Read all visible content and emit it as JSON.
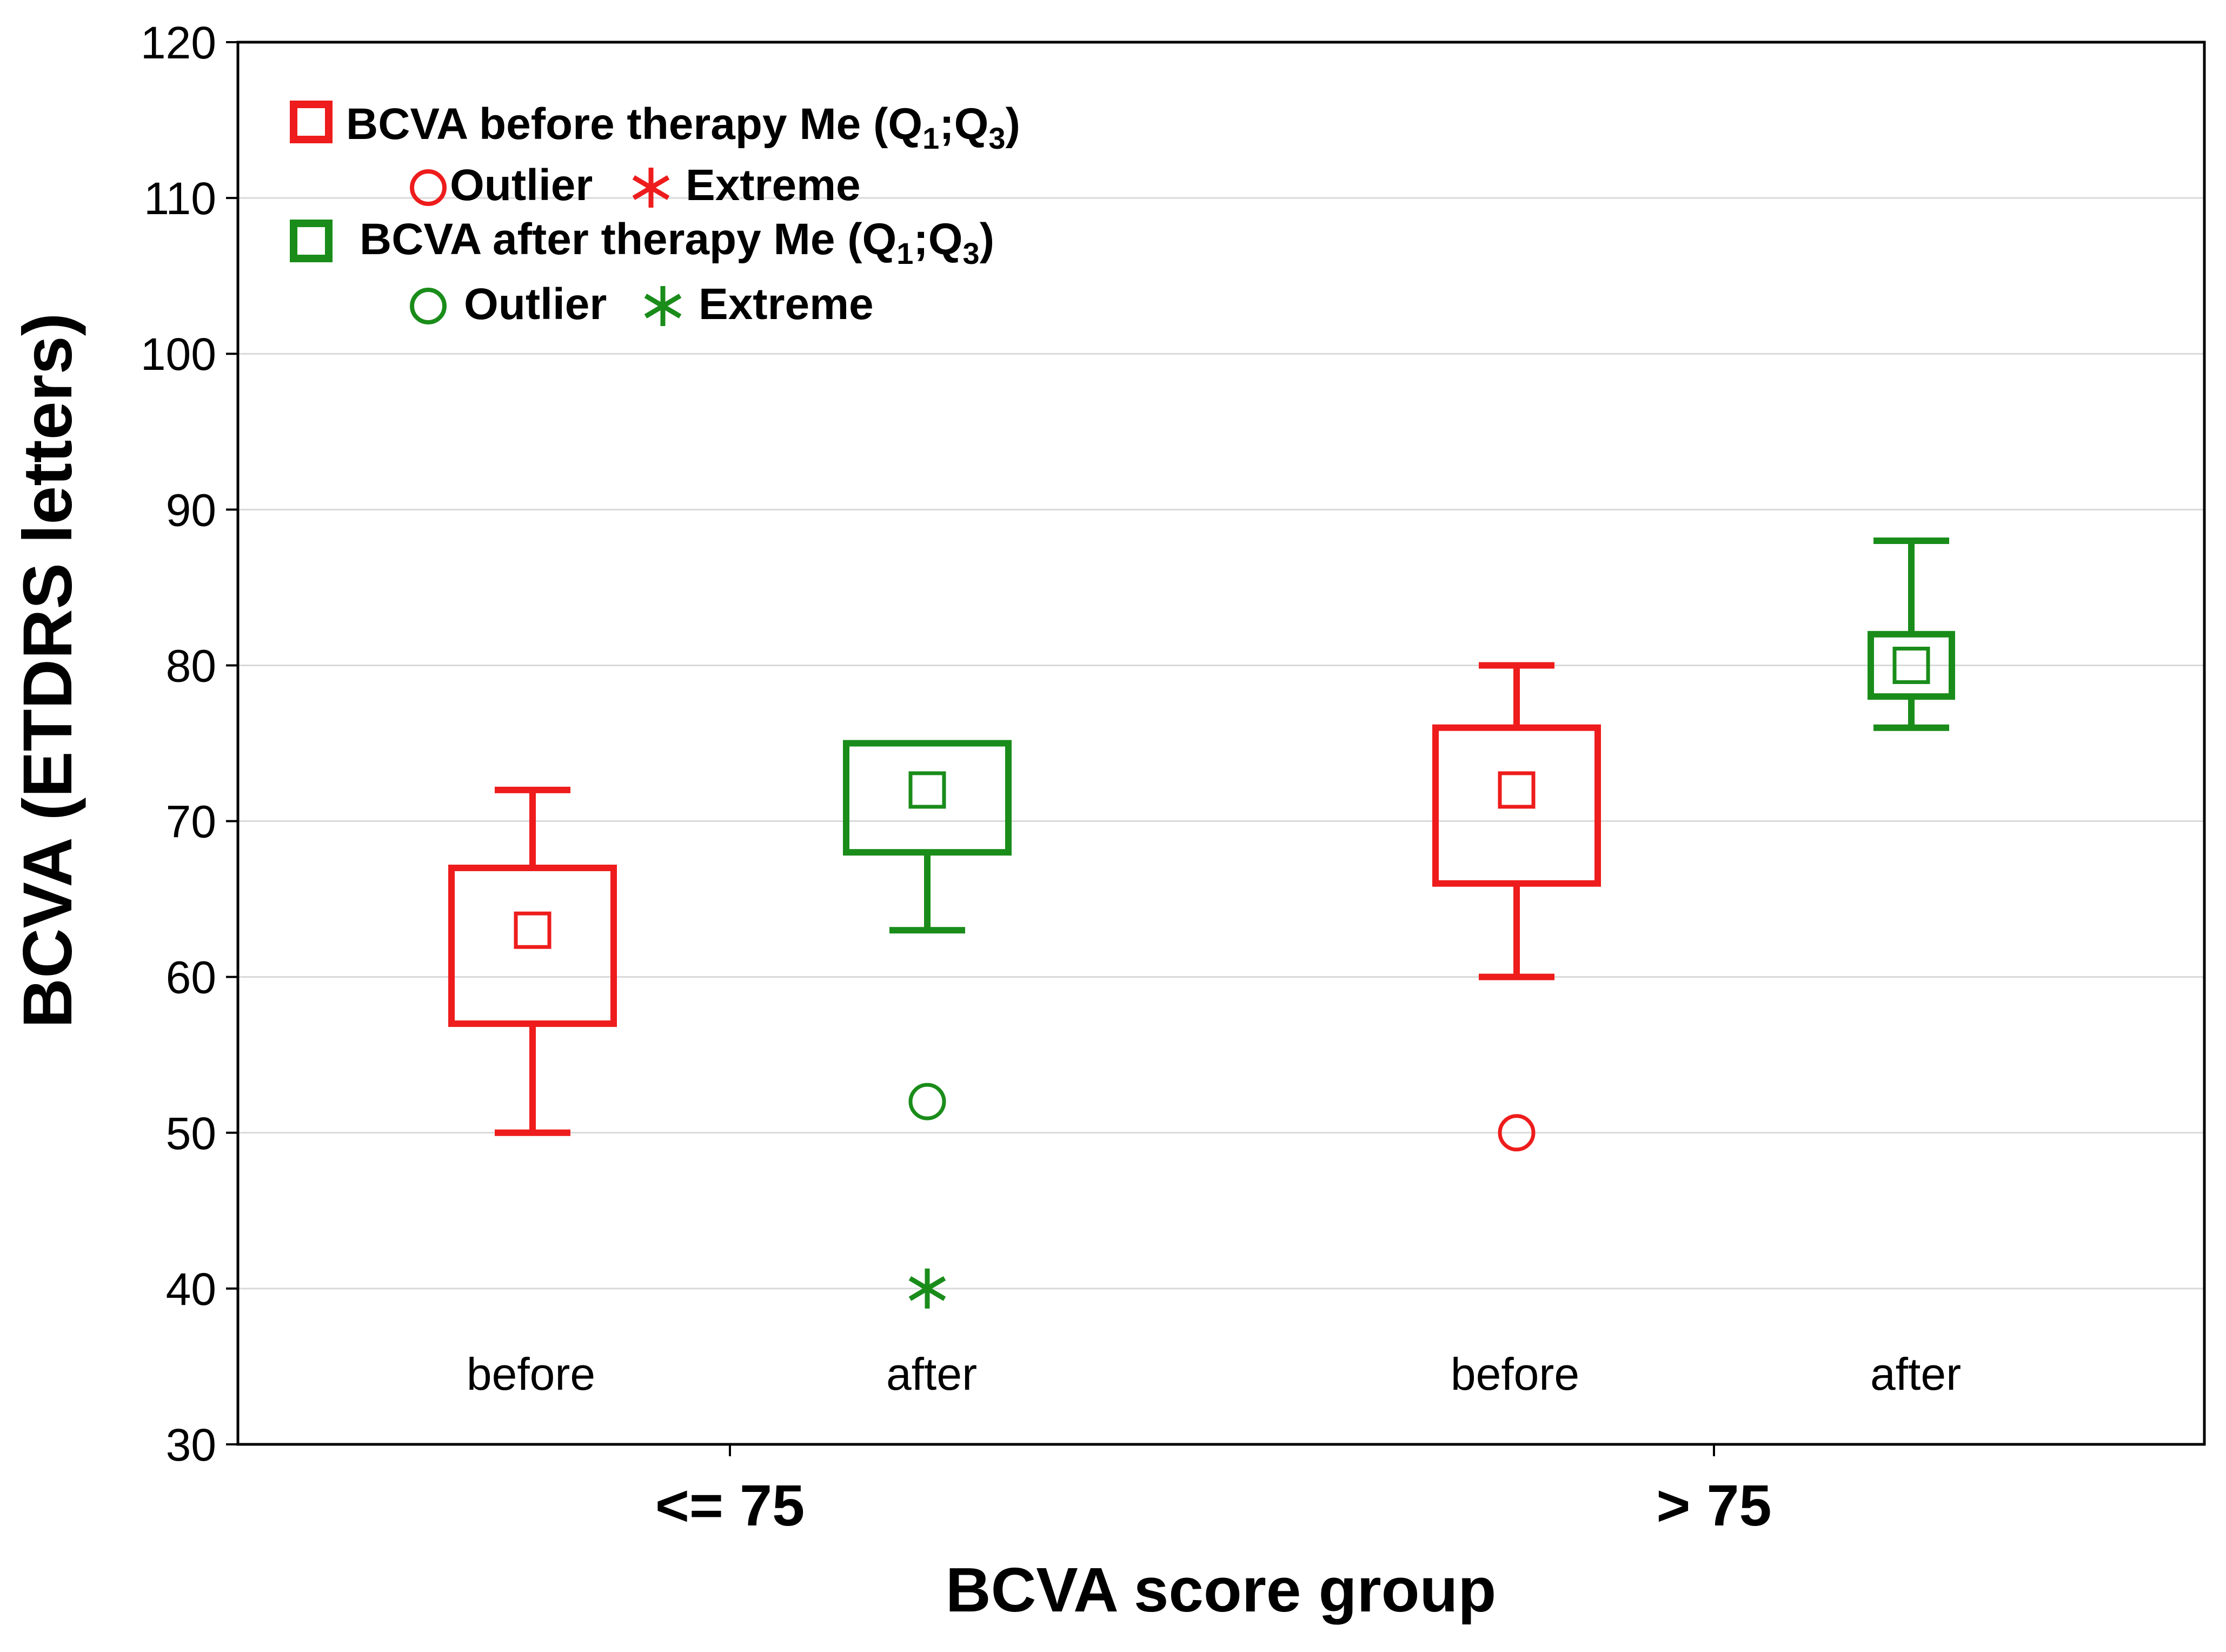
{
  "chart_data": {
    "type": "boxplot",
    "title": "",
    "xlabel": "BCVA score group",
    "ylabel": "BCVA (ETDRS letters)",
    "ylim": [
      30,
      120
    ],
    "yticks": [
      30,
      40,
      50,
      60,
      70,
      80,
      90,
      100,
      110,
      120
    ],
    "grid": true,
    "legend_position": "top-left",
    "groups": [
      {
        "label": "<= 75",
        "boxes": [
          {
            "label": "before",
            "series": "before",
            "median": 63,
            "q1": 57,
            "q3": 67,
            "whisker_low": 50,
            "whisker_high": 72,
            "outliers": [],
            "extremes": []
          },
          {
            "label": "after",
            "series": "after",
            "median": 72,
            "q1": 68,
            "q3": 75,
            "whisker_low": 63,
            "whisker_high": 75,
            "outliers": [
              52
            ],
            "extremes": [
              40
            ]
          }
        ]
      },
      {
        "label": "> 75",
        "boxes": [
          {
            "label": "before",
            "series": "before",
            "median": 72,
            "q1": 66,
            "q3": 76,
            "whisker_low": 60,
            "whisker_high": 80,
            "outliers": [
              50
            ],
            "extremes": []
          },
          {
            "label": "after",
            "series": "after",
            "median": 80,
            "q1": 78,
            "q3": 82,
            "whisker_low": 76,
            "whisker_high": 88,
            "outliers": [],
            "extremes": []
          }
        ]
      }
    ],
    "series_colors": {
      "before": "#ee1c1c",
      "after": "#1a8c1a"
    },
    "legend": {
      "before": {
        "prefix": "BCVA before therapy Me (Q",
        "sub1": "1",
        "mid": ";Q",
        "sub3": "3",
        "suffix": ")",
        "outlier": "Outlier",
        "extreme": "Extreme"
      },
      "after": {
        "prefix": "BCVA after therapy Me (Q",
        "sub1": "1",
        "mid": ";Q",
        "sub3": "3",
        "suffix": ")",
        "outlier": "Outlier",
        "extreme": "Extreme"
      }
    }
  }
}
